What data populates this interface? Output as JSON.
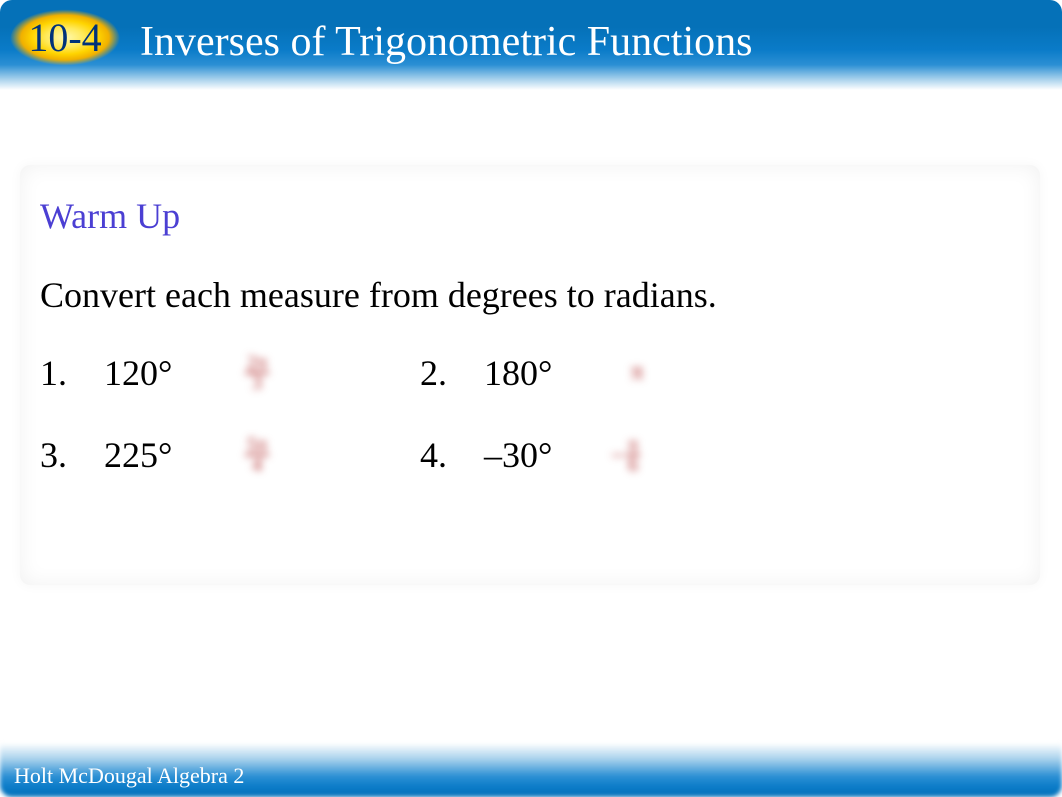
{
  "header": {
    "lesson_number": "10-4",
    "title": "Inverses of Trigonometric Functions",
    "badge_gradient_inner": "#fff9b0",
    "badge_gradient_outer": "#f0b000",
    "bar_gradient_top": "#0571b8",
    "bar_gradient_bottom": "#ffffff",
    "lesson_number_color": "#00327a",
    "title_color": "#ffffff",
    "title_fontsize": 42,
    "lesson_number_fontsize": 40
  },
  "card": {
    "warmup_label": "Warm Up",
    "warmup_color": "#4b3fd3",
    "warmup_fontsize": 36,
    "instruction": "Convert each measure from degrees to radians.",
    "instruction_color": "#000000",
    "instruction_fontsize": 36,
    "background": "#ffffff",
    "problems": [
      {
        "num": "1.",
        "value": "120°",
        "answer_top": "2π",
        "answer_bot": "3",
        "answer_style": "fraction"
      },
      {
        "num": "2.",
        "value": "180°",
        "answer_top": "π",
        "answer_bot": "",
        "answer_style": "single"
      },
      {
        "num": "3.",
        "value": "225°",
        "answer_top": "5π",
        "answer_bot": "4",
        "answer_style": "fraction"
      },
      {
        "num": "4.",
        "value": "–30°",
        "answer_top": "π",
        "answer_bot": "6",
        "answer_style": "neg-fraction"
      }
    ],
    "answer_color": "#b02a2a",
    "problem_fontsize": 36
  },
  "footer": {
    "text": "Holt McDougal Algebra 2",
    "text_color": "#ffffff",
    "fontsize": 22,
    "bar_gradient_top": "#ffffff",
    "bar_gradient_bottom": "#0571b8"
  }
}
